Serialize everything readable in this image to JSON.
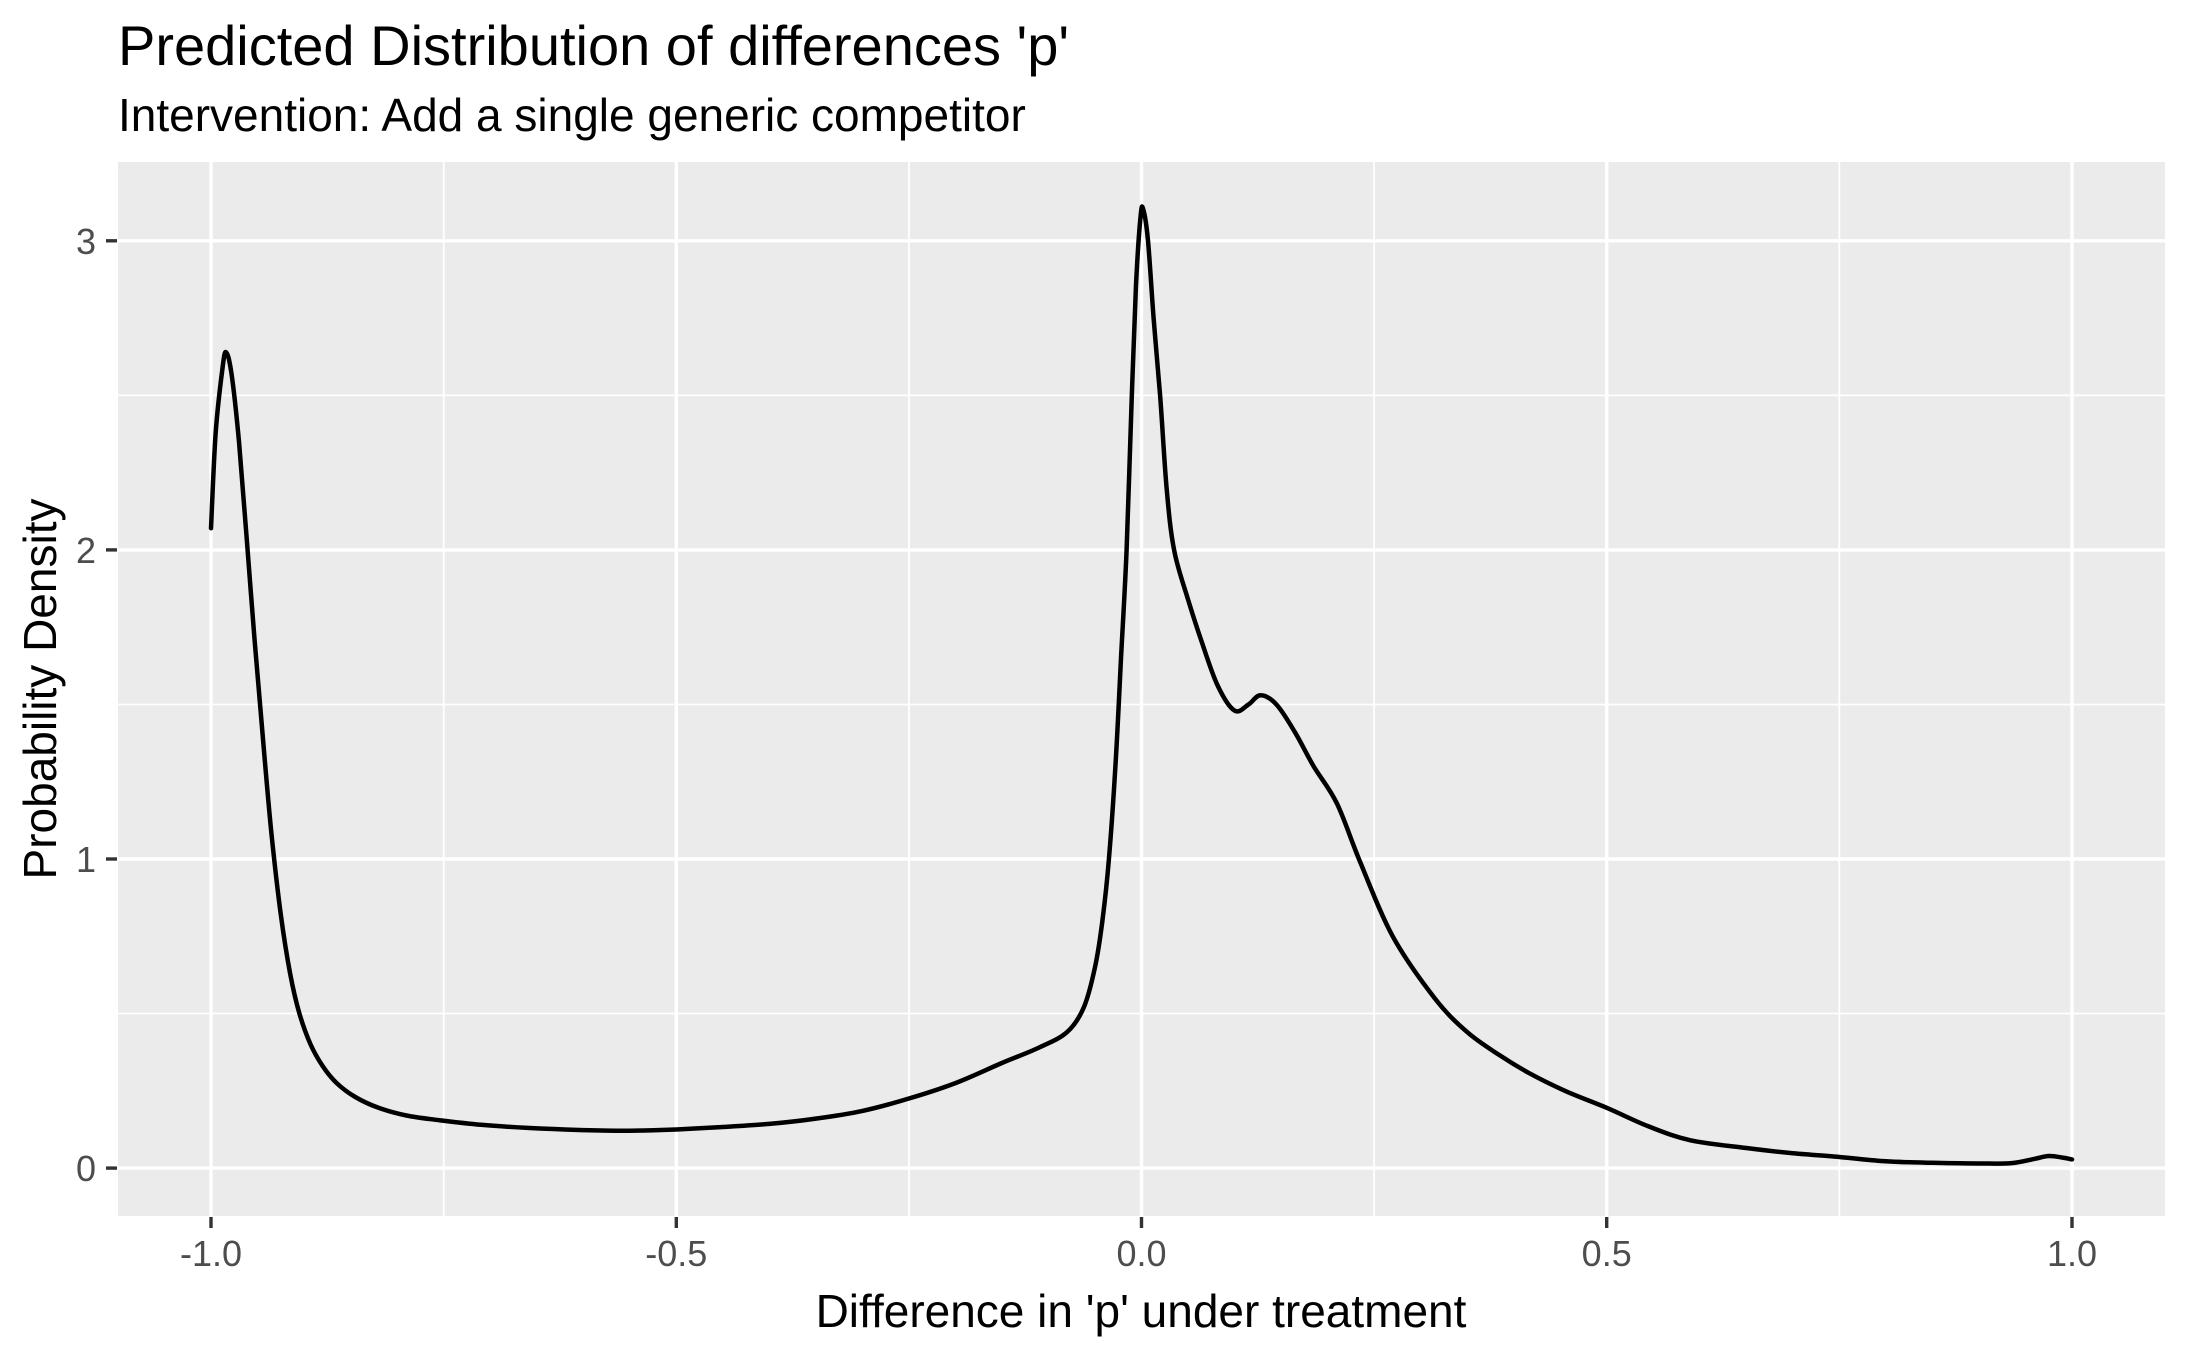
{
  "chart_data": {
    "type": "line",
    "subtype": "density",
    "title": "Predicted Distribution of differences 'p'",
    "subtitle": "Intervention: Add a single generic competitor",
    "xlabel": "Difference in 'p' under treatment",
    "ylabel": "Probability Density",
    "x_ticks": {
      "values": [
        -1.0,
        -0.5,
        0.0,
        0.5,
        1.0
      ],
      "labels": [
        "-1.0",
        "-0.5",
        "0.0",
        "0.5",
        "1.0"
      ]
    },
    "y_ticks": {
      "values": [
        0,
        1,
        2,
        3
      ],
      "labels": [
        "0",
        "1",
        "2",
        "3"
      ]
    },
    "x_minor": [
      -0.75,
      -0.25,
      0.25,
      0.75
    ],
    "y_minor": [
      0.5,
      1.5,
      2.5
    ],
    "xlim": [
      -1.1,
      1.1
    ],
    "ylim": [
      -0.155,
      3.255
    ],
    "grid": true,
    "legend": "none",
    "series": [
      {
        "name": "density",
        "points": [
          [
            -1.0,
            2.07
          ],
          [
            -0.995,
            2.38
          ],
          [
            -0.988,
            2.58
          ],
          [
            -0.984,
            2.64
          ],
          [
            -0.978,
            2.57
          ],
          [
            -0.97,
            2.35
          ],
          [
            -0.962,
            2.05
          ],
          [
            -0.953,
            1.7
          ],
          [
            -0.944,
            1.38
          ],
          [
            -0.935,
            1.08
          ],
          [
            -0.925,
            0.82
          ],
          [
            -0.915,
            0.63
          ],
          [
            -0.905,
            0.5
          ],
          [
            -0.893,
            0.4
          ],
          [
            -0.88,
            0.33
          ],
          [
            -0.865,
            0.275
          ],
          [
            -0.845,
            0.23
          ],
          [
            -0.82,
            0.195
          ],
          [
            -0.79,
            0.17
          ],
          [
            -0.755,
            0.155
          ],
          [
            -0.71,
            0.14
          ],
          [
            -0.66,
            0.13
          ],
          [
            -0.6,
            0.123
          ],
          [
            -0.55,
            0.121
          ],
          [
            -0.5,
            0.125
          ],
          [
            -0.45,
            0.133
          ],
          [
            -0.4,
            0.143
          ],
          [
            -0.35,
            0.16
          ],
          [
            -0.3,
            0.185
          ],
          [
            -0.25,
            0.225
          ],
          [
            -0.2,
            0.275
          ],
          [
            -0.15,
            0.34
          ],
          [
            -0.11,
            0.39
          ],
          [
            -0.08,
            0.44
          ],
          [
            -0.062,
            0.52
          ],
          [
            -0.05,
            0.65
          ],
          [
            -0.042,
            0.8
          ],
          [
            -0.035,
            1.0
          ],
          [
            -0.028,
            1.3
          ],
          [
            -0.022,
            1.65
          ],
          [
            -0.016,
            2.0
          ],
          [
            -0.011,
            2.45
          ],
          [
            -0.006,
            2.85
          ],
          [
            -0.001,
            3.08
          ],
          [
            0.002,
            3.1
          ],
          [
            0.007,
            3.0
          ],
          [
            0.013,
            2.75
          ],
          [
            0.02,
            2.5
          ],
          [
            0.027,
            2.2
          ],
          [
            0.035,
            2.0
          ],
          [
            0.05,
            1.84
          ],
          [
            0.065,
            1.7
          ],
          [
            0.082,
            1.56
          ],
          [
            0.1,
            1.48
          ],
          [
            0.115,
            1.5
          ],
          [
            0.128,
            1.53
          ],
          [
            0.145,
            1.5
          ],
          [
            0.165,
            1.41
          ],
          [
            0.185,
            1.3
          ],
          [
            0.21,
            1.18
          ],
          [
            0.235,
            0.99
          ],
          [
            0.27,
            0.75
          ],
          [
            0.315,
            0.55
          ],
          [
            0.35,
            0.44
          ],
          [
            0.385,
            0.365
          ],
          [
            0.415,
            0.31
          ],
          [
            0.455,
            0.25
          ],
          [
            0.5,
            0.195
          ],
          [
            0.545,
            0.135
          ],
          [
            0.59,
            0.09
          ],
          [
            0.65,
            0.065
          ],
          [
            0.7,
            0.048
          ],
          [
            0.75,
            0.036
          ],
          [
            0.8,
            0.022
          ],
          [
            0.85,
            0.017
          ],
          [
            0.9,
            0.015
          ],
          [
            0.935,
            0.016
          ],
          [
            0.96,
            0.03
          ],
          [
            0.975,
            0.039
          ],
          [
            0.99,
            0.034
          ],
          [
            1.0,
            0.028
          ]
        ]
      }
    ]
  },
  "style": {
    "panel_bg": "#EBEBEB",
    "grid_color": "#FFFFFF",
    "curve_color": "#000000",
    "axis_tick_color": "#333333",
    "tick_label_color": "#4D4D4D",
    "text_color": "#000000",
    "page_bg": "#FFFFFF"
  }
}
